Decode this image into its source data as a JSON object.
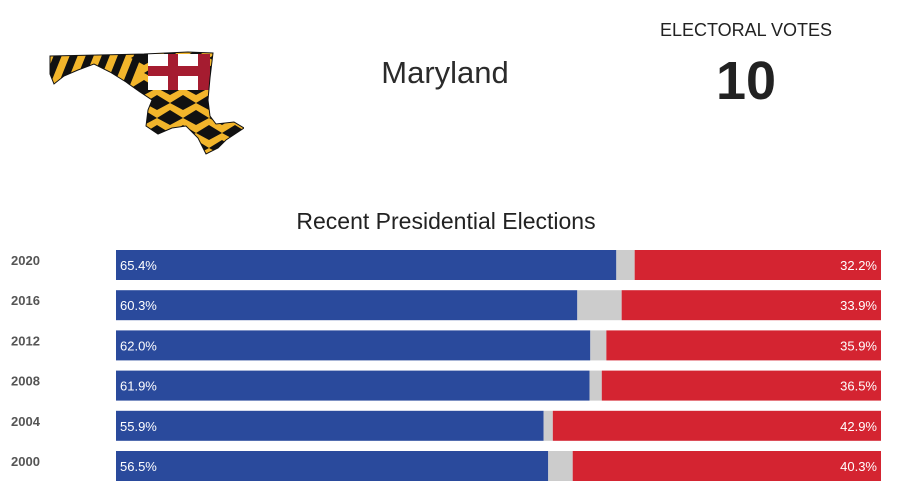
{
  "header": {
    "state_name": "Maryland",
    "electoral_label": "ELECTORAL VOTES",
    "electoral_votes": "10",
    "map_icon": "maryland-state-flag-map-icon"
  },
  "colors": {
    "democrat": "#2a4a9c",
    "republican": "#d42431",
    "other": "#cccccc",
    "flag_gold": "#f2b52b",
    "flag_black": "#111111",
    "flag_red": "#a51c30"
  },
  "chart_data": {
    "type": "bar",
    "title": "Recent Presidential Elections",
    "categories": [
      "2020",
      "2016",
      "2012",
      "2008",
      "2004",
      "2000"
    ],
    "series": [
      {
        "values": [
          65.4,
          60.3,
          62.0,
          61.9,
          55.9,
          56.5
        ],
        "labels": [
          "65.4%",
          "60.3%",
          "62.0%",
          "61.9%",
          "55.9%",
          "56.5%"
        ]
      },
      {
        "values": [
          2.4,
          5.8,
          2.1,
          1.6,
          1.2,
          3.2
        ]
      },
      {
        "values": [
          32.2,
          33.9,
          35.9,
          36.5,
          42.9,
          40.3
        ],
        "labels": [
          "32.2%",
          "33.9%",
          "35.9%",
          "36.5%",
          "42.9%",
          "40.3%"
        ]
      }
    ],
    "stacked": true,
    "orientation": "horizontal",
    "xlim": [
      0,
      100
    ]
  }
}
